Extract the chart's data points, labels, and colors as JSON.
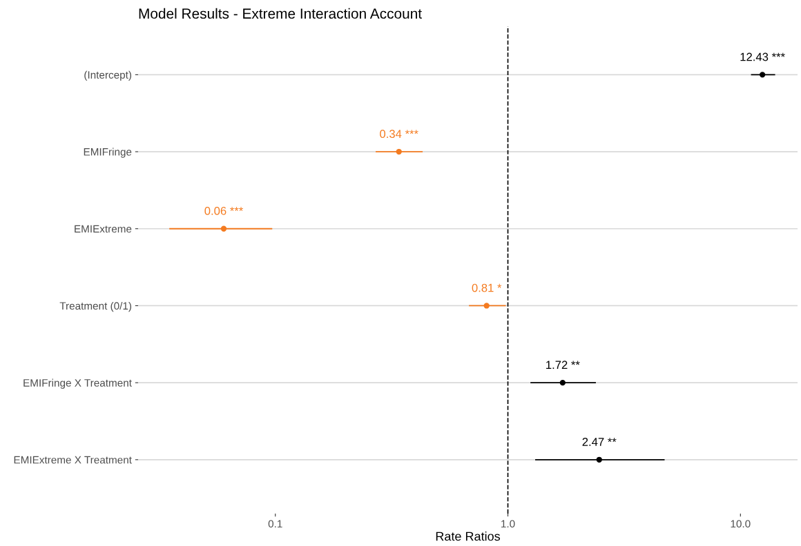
{
  "chart_data": {
    "type": "scatter",
    "orientation": "horizontal",
    "title": "Model Results - Extreme Interaction Account",
    "xlabel": "Rate Ratios",
    "categories": [
      "(Intercept)",
      "EMIFringe",
      "EMIExtreme",
      "Treatment (0/1)",
      "EMIFringe X Treatment",
      "EMIExtreme X Treatment"
    ],
    "values": [
      12.43,
      0.34,
      0.06,
      0.81,
      1.72,
      2.47
    ],
    "errors": [
      [
        11.1,
        14.1
      ],
      [
        0.27,
        0.43
      ],
      [
        0.035,
        0.097
      ],
      [
        0.68,
        0.98
      ],
      [
        1.25,
        2.39
      ],
      [
        1.31,
        4.72
      ]
    ],
    "colors": [
      "#000000",
      "#f47b20",
      "#f47b20",
      "#f47b20",
      "#000000",
      "#000000"
    ],
    "value_labels": [
      "12.43 ***",
      "0.34 ***",
      "0.06 ***",
      "0.81 *",
      "1.72 **",
      "2.47 **"
    ],
    "log": "x",
    "xlim": [
      0.0257,
      17.6
    ],
    "xticks": [
      0.1,
      {
        "value": 1,
        "label": "1.0"
      },
      {
        "value": 10,
        "label": "10.0"
      }
    ],
    "ref_lines": [
      {
        "axis": "x",
        "value": 1,
        "color": "#000000",
        "line_style": "dashed"
      }
    ],
    "grid": "y",
    "marker": "circle"
  }
}
